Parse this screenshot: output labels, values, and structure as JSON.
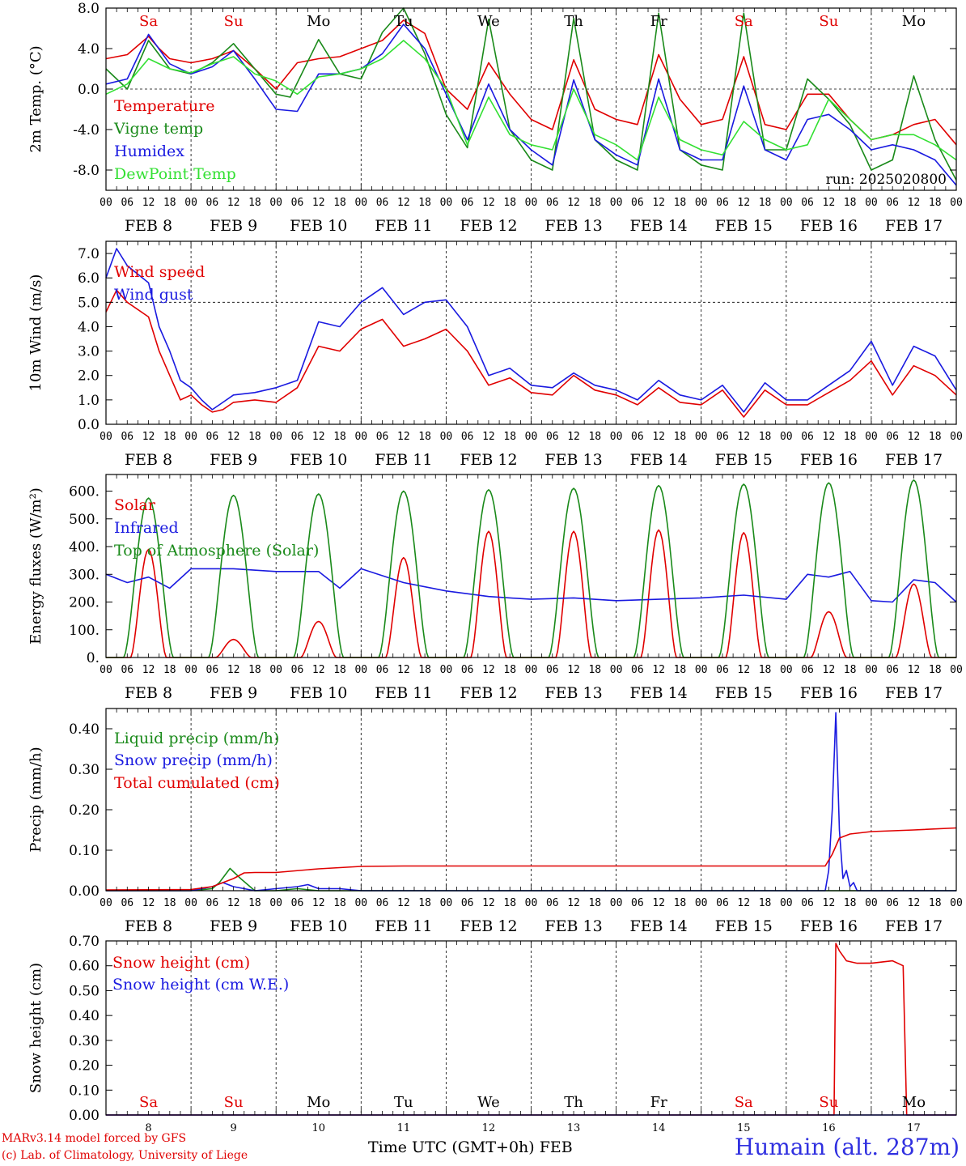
{
  "footer": {
    "credit_line1": "MARv3.14 model forced by GFS",
    "credit_line2": "(c) Lab. of Climatology, University of Liege",
    "xaxis_title": "Time UTC (GMT+0h) FEB",
    "station": "Humain (alt. 287m)"
  },
  "colors": {
    "red": "#e00000",
    "green": "#1a8a1a",
    "blue": "#1a1ae0",
    "lightgreen": "#33e033",
    "weekend": "#e00000",
    "weekday": "#000000"
  },
  "chart_data": [
    {
      "type": "line",
      "ylabel": "2m Temp. (°C)",
      "ylim": [
        -10,
        8
      ],
      "yticks": [
        "8.0",
        "4.0",
        "0.0",
        "-4.0",
        "-8.0"
      ],
      "ytick_values": [
        8,
        4,
        0,
        -4,
        -8
      ],
      "day_labels": [
        "Sa",
        "Su",
        "Mo",
        "Tu",
        "We",
        "Th",
        "Fr",
        "Sa",
        "Su",
        "Mo"
      ],
      "date_labels": [
        "FEB  8",
        "FEB  9",
        "FEB 10",
        "FEB 11",
        "FEB 12",
        "FEB 13",
        "FEB 14",
        "FEB 15",
        "FEB 16",
        "FEB 17"
      ],
      "hour_labels": [
        "00",
        "06",
        "12",
        "18"
      ],
      "hour_end": "00",
      "annotation": "run: 2025020800",
      "dashed_reference": 0,
      "x_unit": "hours since 2025-02-08 00 UTC",
      "series": [
        {
          "name": "Temperature",
          "color": "red",
          "x": [
            0,
            6,
            12,
            15,
            18,
            24,
            30,
            36,
            42,
            48,
            54,
            60,
            66,
            72,
            78,
            84,
            90,
            96,
            102,
            108,
            114,
            120,
            126,
            132,
            138,
            144,
            150,
            156,
            162,
            168,
            174,
            180,
            186,
            192,
            198,
            204,
            210,
            216,
            222,
            228,
            234,
            240
          ],
          "y": [
            3.0,
            3.4,
            5.2,
            4.0,
            3.0,
            2.6,
            3.0,
            3.8,
            2.0,
            0.0,
            2.6,
            3.0,
            3.2,
            4.0,
            4.8,
            6.8,
            5.5,
            0.0,
            -2.0,
            2.6,
            -0.5,
            -3.0,
            -4.0,
            2.9,
            -2.0,
            -3.0,
            -3.5,
            3.4,
            -1.0,
            -3.5,
            -3.0,
            3.2,
            -3.5,
            -4.0,
            -0.5,
            -0.5,
            -3.0,
            -5.0,
            -4.5,
            -3.5,
            -3.0,
            -5.5
          ]
        },
        {
          "name": "Vigne temp",
          "color": "green",
          "x": [
            0,
            6,
            12,
            18,
            24,
            30,
            36,
            42,
            48,
            52,
            60,
            66,
            72,
            78,
            84,
            90,
            96,
            102,
            108,
            114,
            120,
            126,
            132,
            138,
            144,
            150,
            156,
            162,
            168,
            174,
            180,
            186,
            192,
            198,
            204,
            210,
            216,
            222,
            228,
            234,
            240
          ],
          "y": [
            2.0,
            0.0,
            4.8,
            2.0,
            1.5,
            2.6,
            4.5,
            2.0,
            -0.5,
            -0.8,
            4.9,
            1.5,
            1.0,
            5.6,
            8.0,
            3.5,
            -2.5,
            -5.8,
            6.9,
            -4.0,
            -7.0,
            -8.0,
            7.0,
            -5.0,
            -7.0,
            -8.0,
            7.5,
            -6.0,
            -7.5,
            -8.0,
            7.5,
            -6.0,
            -6.0,
            1.0,
            -1.0,
            -3.5,
            -8.0,
            -7.0,
            1.3,
            -5.0,
            -9.0
          ]
        },
        {
          "name": "Humidex",
          "color": "blue",
          "x": [
            0,
            6,
            12,
            18,
            24,
            30,
            36,
            42,
            48,
            54,
            60,
            66,
            72,
            78,
            84,
            90,
            96,
            102,
            108,
            114,
            120,
            126,
            132,
            138,
            144,
            150,
            156,
            162,
            168,
            174,
            180,
            186,
            192,
            198,
            204,
            210,
            216,
            222,
            228,
            234,
            240
          ],
          "y": [
            0.5,
            1.0,
            5.4,
            2.5,
            1.5,
            2.2,
            3.8,
            1.0,
            -2.0,
            -2.2,
            1.5,
            1.5,
            2.0,
            3.5,
            6.4,
            4.0,
            -0.5,
            -5.0,
            0.5,
            -4.0,
            -6.0,
            -7.5,
            0.9,
            -5.0,
            -6.5,
            -7.5,
            1.0,
            -6.0,
            -7.0,
            -7.0,
            0.3,
            -6.0,
            -7.0,
            -3.0,
            -2.5,
            -4.0,
            -6.0,
            -5.5,
            -6.0,
            -7.0,
            -9.5
          ]
        },
        {
          "name": "DewPoint Temp",
          "color": "lightgreen",
          "x": [
            0,
            6,
            12,
            18,
            24,
            30,
            36,
            42,
            48,
            54,
            60,
            66,
            72,
            78,
            84,
            90,
            96,
            102,
            108,
            114,
            120,
            126,
            132,
            138,
            144,
            150,
            156,
            162,
            168,
            174,
            180,
            186,
            192,
            198,
            204,
            210,
            216,
            222,
            228,
            234,
            240
          ],
          "y": [
            -0.5,
            0.5,
            3.0,
            2.0,
            1.6,
            2.5,
            3.2,
            1.5,
            0.8,
            -0.5,
            1.2,
            1.5,
            2.0,
            3.0,
            4.8,
            3.0,
            0.0,
            -5.5,
            -0.8,
            -4.5,
            -5.5,
            -6.0,
            0.0,
            -4.5,
            -5.5,
            -7.0,
            -0.8,
            -5.0,
            -6.0,
            -6.5,
            -3.2,
            -5.0,
            -6.0,
            -5.5,
            -1.0,
            -3.0,
            -5.0,
            -4.5,
            -4.5,
            -5.5,
            -7.0
          ]
        }
      ]
    },
    {
      "type": "line",
      "ylabel": "10m Wind (m/s)",
      "ylim": [
        0,
        7.5
      ],
      "yticks": [
        "7.0",
        "6.0",
        "5.0",
        "4.0",
        "3.0",
        "2.0",
        "1.0",
        "0.0"
      ],
      "ytick_values": [
        7,
        6,
        5,
        4,
        3,
        2,
        1,
        0
      ],
      "date_labels": [
        "FEB  8",
        "FEB  9",
        "FEB 10",
        "FEB 11",
        "FEB 12",
        "FEB 13",
        "FEB 14",
        "FEB 15",
        "FEB 16",
        "FEB 17"
      ],
      "hour_labels": [
        "00",
        "06",
        "12",
        "18"
      ],
      "hour_end": "00",
      "dashed_reference": 5,
      "series": [
        {
          "name": "Wind speed",
          "color": "red",
          "x": [
            0,
            3,
            6,
            12,
            15,
            18,
            21,
            24,
            27,
            30,
            33,
            36,
            42,
            48,
            54,
            60,
            66,
            72,
            78,
            84,
            90,
            96,
            102,
            108,
            114,
            120,
            126,
            132,
            138,
            144,
            150,
            156,
            162,
            168,
            174,
            180,
            186,
            192,
            198,
            204,
            210,
            216,
            222,
            228,
            234,
            240
          ],
          "y": [
            4.6,
            5.5,
            5.0,
            4.4,
            3.0,
            2.0,
            1.0,
            1.2,
            0.8,
            0.5,
            0.6,
            0.9,
            1.0,
            0.9,
            1.5,
            3.2,
            3.0,
            3.9,
            4.3,
            3.2,
            3.5,
            3.9,
            3.0,
            1.6,
            1.9,
            1.3,
            1.2,
            2.0,
            1.4,
            1.2,
            0.8,
            1.5,
            0.9,
            0.8,
            1.4,
            0.3,
            1.4,
            0.8,
            0.8,
            1.3,
            1.8,
            2.6,
            1.2,
            2.4,
            2.0,
            1.2
          ]
        },
        {
          "name": "Wind gust",
          "color": "blue",
          "x": [
            0,
            3,
            6,
            12,
            15,
            18,
            21,
            24,
            27,
            30,
            33,
            36,
            42,
            48,
            54,
            60,
            66,
            72,
            78,
            84,
            90,
            96,
            102,
            108,
            114,
            120,
            126,
            132,
            138,
            144,
            150,
            156,
            162,
            168,
            174,
            180,
            186,
            192,
            198,
            204,
            210,
            216,
            222,
            228,
            234,
            240
          ],
          "y": [
            6.0,
            7.2,
            6.5,
            5.8,
            4.0,
            3.0,
            1.8,
            1.5,
            1.0,
            0.6,
            0.9,
            1.2,
            1.3,
            1.5,
            1.8,
            4.2,
            4.0,
            5.0,
            5.6,
            4.5,
            5.0,
            5.1,
            4.0,
            2.0,
            2.3,
            1.6,
            1.5,
            2.1,
            1.6,
            1.4,
            1.0,
            1.8,
            1.2,
            1.0,
            1.6,
            0.5,
            1.7,
            1.0,
            1.0,
            1.6,
            2.2,
            3.4,
            1.6,
            3.2,
            2.8,
            1.4
          ]
        }
      ]
    },
    {
      "type": "line",
      "ylabel": "Energy fluxes (W/m²)",
      "ylim": [
        0,
        660
      ],
      "yticks": [
        "600.",
        "500.",
        "400.",
        "300.",
        "200.",
        "100.",
        "0."
      ],
      "ytick_values": [
        600,
        500,
        400,
        300,
        200,
        100,
        0
      ],
      "date_labels": [
        "FEB  8",
        "FEB  9",
        "FEB 10",
        "FEB 11",
        "FEB 12",
        "FEB 13",
        "FEB 14",
        "FEB 15",
        "FEB 16",
        "FEB 17"
      ],
      "hour_labels": [
        "00",
        "06",
        "12",
        "18"
      ],
      "hour_end": "00",
      "series": [
        {
          "name": "Solar",
          "color": "red",
          "peaks": [
            390,
            65,
            130,
            360,
            455,
            455,
            460,
            450,
            165,
            265
          ]
        },
        {
          "name": "Infrared",
          "color": "blue",
          "x": [
            0,
            6,
            12,
            18,
            24,
            36,
            48,
            60,
            66,
            72,
            84,
            96,
            108,
            120,
            132,
            144,
            156,
            168,
            180,
            192,
            198,
            204,
            210,
            216,
            222,
            228,
            234,
            240
          ],
          "y": [
            300,
            270,
            290,
            250,
            320,
            320,
            310,
            310,
            250,
            320,
            270,
            240,
            220,
            210,
            215,
            205,
            210,
            215,
            225,
            210,
            300,
            290,
            310,
            205,
            200,
            280,
            270,
            200
          ]
        },
        {
          "name": "Top of Atmosphere (Solar)",
          "color": "green",
          "peaks": [
            575,
            585,
            590,
            600,
            605,
            610,
            620,
            625,
            630,
            640
          ]
        }
      ]
    },
    {
      "type": "line",
      "ylabel": "Precip (mm/h)",
      "ylim": [
        0,
        0.45
      ],
      "yticks": [
        "0.40",
        "0.30",
        "0.20",
        "0.10",
        "0.00"
      ],
      "ytick_values": [
        0.4,
        0.3,
        0.2,
        0.1,
        0
      ],
      "date_labels": [
        "FEB  8",
        "FEB  9",
        "FEB 10",
        "FEB 11",
        "FEB 12",
        "FEB 13",
        "FEB 14",
        "FEB 15",
        "FEB 16",
        "FEB 17"
      ],
      "hour_labels": [
        "00",
        "06",
        "12",
        "18"
      ],
      "hour_end": "00",
      "series": [
        {
          "name": "Liquid precip (mm/h)",
          "color": "green",
          "x": [
            0,
            24,
            30,
            32,
            35,
            38,
            42,
            48,
            54,
            60,
            72,
            240
          ],
          "y": [
            0,
            0,
            0.005,
            0.02,
            0.055,
            0.03,
            0,
            0.0,
            0.005,
            0,
            0,
            0
          ]
        },
        {
          "name": "Snow precip (mm/h)",
          "color": "blue",
          "x": [
            0,
            24,
            30,
            33,
            36,
            39,
            42,
            48,
            54,
            57,
            60,
            66,
            72,
            203,
            204,
            205,
            206,
            207,
            208,
            209,
            210,
            211,
            212,
            240
          ],
          "y": [
            0,
            0,
            0.01,
            0.02,
            0.01,
            0.005,
            0,
            0.005,
            0.01,
            0.015,
            0.005,
            0.005,
            0,
            0,
            0.05,
            0.2,
            0.44,
            0.15,
            0.03,
            0.05,
            0.01,
            0.02,
            0,
            0
          ]
        },
        {
          "name": "Total cumulated (cm)",
          "color": "red",
          "x": [
            0,
            24,
            30,
            36,
            39,
            42,
            48,
            60,
            72,
            84,
            96,
            120,
            150,
            180,
            203,
            205,
            207,
            210,
            216,
            228,
            240
          ],
          "y": [
            0.002,
            0.003,
            0.01,
            0.03,
            0.044,
            0.045,
            0.045,
            0.054,
            0.06,
            0.061,
            0.061,
            0.061,
            0.061,
            0.061,
            0.061,
            0.09,
            0.13,
            0.14,
            0.146,
            0.15,
            0.155
          ]
        }
      ]
    },
    {
      "type": "line",
      "ylabel": "Snow height (cm)",
      "ylim": [
        0,
        0.7
      ],
      "yticks": [
        "0.70",
        "0.60",
        "0.50",
        "0.40",
        "0.30",
        "0.20",
        "0.10",
        "0.00"
      ],
      "ytick_values": [
        0.7,
        0.6,
        0.5,
        0.4,
        0.3,
        0.2,
        0.1,
        0
      ],
      "day_labels": [
        "Sa",
        "Su",
        "Mo",
        "Tu",
        "We",
        "Th",
        "Fr",
        "Sa",
        "Su",
        "Mo"
      ],
      "day_numbers": [
        "8",
        "9",
        "10",
        "11",
        "12",
        "13",
        "14",
        "15",
        "16",
        "17"
      ],
      "series": [
        {
          "name": "Snow height (cm)",
          "color": "red",
          "x": [
            0,
            205.5,
            206,
            207,
            209,
            212,
            216,
            222,
            225,
            226,
            227,
            240
          ],
          "y": [
            0,
            0,
            0.69,
            0.66,
            0.62,
            0.61,
            0.61,
            0.62,
            0.6,
            0,
            0,
            0
          ]
        },
        {
          "name": "Snow height (cm W.E.)",
          "color": "blue",
          "x": [
            0,
            240
          ],
          "y": [
            0,
            0
          ]
        }
      ]
    }
  ]
}
